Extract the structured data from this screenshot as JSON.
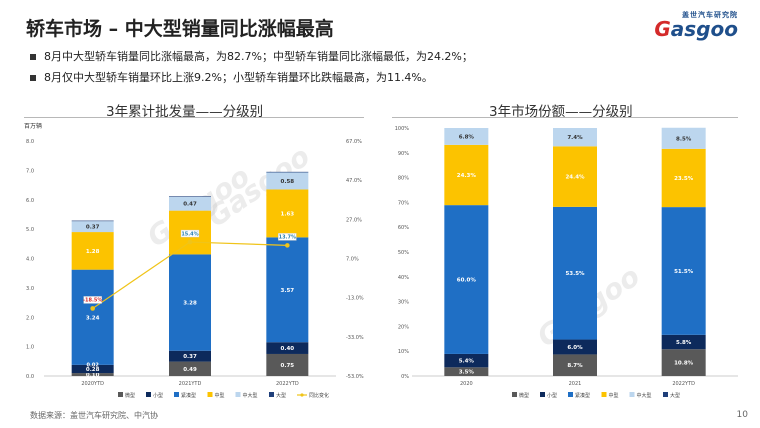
{
  "header": {
    "title": "轿车市场 – 中大型销量同比涨幅最高",
    "logo_top": "盖世汽车研究院",
    "logo_brand_g": "G",
    "logo_brand_rest": "asgoo"
  },
  "bullets": [
    "8月中大型轿车销量同比涨幅最高，为82.7%；中型轿车销量同比涨幅最低，为24.2%；",
    "8月仅中大型轿车销量环比上涨9.2%；小型轿车销量环比跌幅最高，为11.4%。"
  ],
  "footer": {
    "source": "数据来源：盖世汽车研究院、中汽协",
    "page": "10"
  },
  "watermark": "Gasgoo",
  "colors": {
    "micro": "#595959",
    "small": "#0d2a5c",
    "compact": "#1f6fc5",
    "midsize": "#fcc300",
    "midlarge": "#bcd6ee",
    "large": "#1f3f7a",
    "yoy": "#f0c419"
  },
  "chart_data": [
    {
      "type": "bar",
      "title": "3年累计批发量——分级别",
      "ylabel": "百万辆",
      "ylim": [
        0,
        8
      ],
      "yticks": [
        "0.0",
        "1.0",
        "2.0",
        "3.0",
        "4.0",
        "5.0",
        "6.0",
        "7.0",
        "8.0"
      ],
      "y2lim": [
        -53,
        67
      ],
      "y2ticks": [
        "-53.0%",
        "-33.0%",
        "-13.0%",
        "7.0%",
        "27.0%",
        "47.0%",
        "67.0%"
      ],
      "categories": [
        "2020YTD",
        "2021YTD",
        "2022YTD"
      ],
      "series": [
        {
          "name": "微型",
          "key": "micro",
          "values": [
            0.1,
            0.49,
            0.75
          ],
          "labels": [
            "0.10",
            "0.49",
            "0.75"
          ]
        },
        {
          "name": "小型",
          "key": "small",
          "values": [
            0.28,
            0.37,
            0.4
          ],
          "labels": [
            "0.28",
            "0.37",
            "0.40"
          ]
        },
        {
          "name": "紧凑型",
          "key": "compact",
          "values": [
            3.24,
            3.28,
            3.57
          ],
          "labels": [
            "3.24",
            "3.28",
            "3.57"
          ]
        },
        {
          "name": "中型",
          "key": "midsize",
          "values": [
            1.28,
            1.49,
            1.63
          ],
          "labels": [
            "1.28",
            "1.49",
            "1.63"
          ]
        },
        {
          "name": "中大型",
          "key": "midlarge",
          "values": [
            0.37,
            0.47,
            0.58
          ],
          "labels": [
            "0.37",
            "0.47",
            "0.58"
          ]
        },
        {
          "name": "大型",
          "key": "large",
          "values": [
            0.02,
            0.02,
            0.02
          ],
          "labels": [
            "",
            "",
            ""
          ]
        }
      ],
      "extra_label": "0.02",
      "line": {
        "name": "同比变化",
        "values": [
          -18.5,
          15.4,
          13.7
        ],
        "labels": [
          "-18.5%",
          "15.4%",
          "13.7%"
        ]
      }
    },
    {
      "type": "bar",
      "title": "3年市场份额——分级别",
      "ylim": [
        0,
        100
      ],
      "yticks": [
        "0%",
        "10%",
        "20%",
        "30%",
        "40%",
        "50%",
        "60%",
        "70%",
        "80%",
        "90%",
        "100%"
      ],
      "categories": [
        "2020",
        "2021",
        "2022YTD"
      ],
      "series": [
        {
          "name": "微型",
          "key": "micro",
          "values": [
            3.5,
            8.7,
            10.8
          ],
          "labels": [
            "3.5%",
            "8.7%",
            "10.8%"
          ]
        },
        {
          "name": "小型",
          "key": "small",
          "values": [
            5.4,
            6.0,
            5.8
          ],
          "labels": [
            "5.4%",
            "6.0%",
            "5.8%"
          ]
        },
        {
          "name": "紧凑型",
          "key": "compact",
          "values": [
            60.0,
            53.5,
            51.5
          ],
          "labels": [
            "60.0%",
            "53.5%",
            "51.5%"
          ]
        },
        {
          "name": "中型",
          "key": "midsize",
          "values": [
            24.3,
            24.4,
            23.5
          ],
          "labels": [
            "24.3%",
            "24.4%",
            "23.5%"
          ]
        },
        {
          "name": "中大型",
          "key": "midlarge",
          "values": [
            6.8,
            7.4,
            8.5
          ],
          "labels": [
            "6.8%",
            "7.4%",
            "8.5%"
          ]
        },
        {
          "name": "大型",
          "key": "large",
          "values": [
            0,
            0,
            0
          ],
          "labels": [
            "",
            "",
            ""
          ]
        }
      ]
    }
  ]
}
